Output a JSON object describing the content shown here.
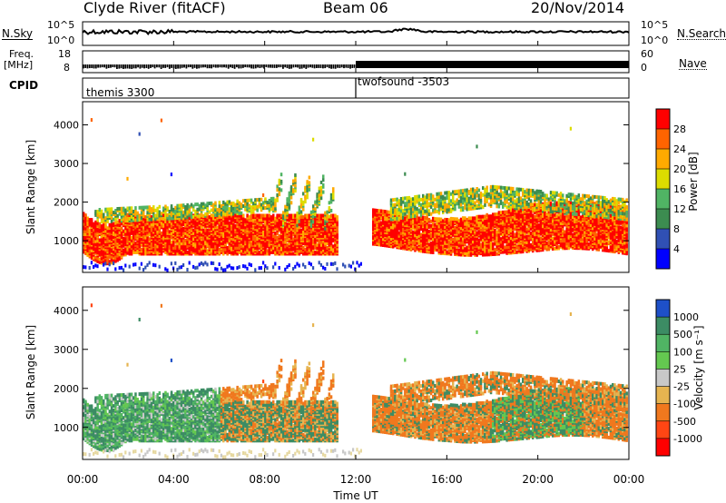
{
  "header": {
    "station": "Clyde River (fitACF)",
    "beam": "Beam 06",
    "date": "20/Nov/2014"
  },
  "panels": {
    "nsky_label": "N.Sky",
    "nsearch_label": "N.Search",
    "log_ticks_left": [
      "10^5",
      "10^0"
    ],
    "log_ticks_right": [
      "10^5",
      "10^0"
    ],
    "freq_label": "Freq.",
    "freq_unit": "[MHz]",
    "freq_ticks": [
      "18",
      "8"
    ],
    "nave_label": "Nave",
    "nave_ticks": [
      "60",
      "0"
    ],
    "cpid_label": "CPID",
    "cpid_segments": [
      {
        "name": "themis 3300",
        "start_hour": 0
      },
      {
        "name": "twofsound -3503",
        "start_hour": 12
      }
    ]
  },
  "chart_data": [
    {
      "type": "heatmap",
      "quantity": "Power",
      "ylabel": "Slant Range [km]",
      "ylim": [
        180,
        4600
      ],
      "yticks": [
        "1000",
        "2000",
        "3000",
        "4000"
      ],
      "xlim": [
        0,
        24
      ],
      "colorbar": {
        "label": "Power [dB]",
        "range": [
          0,
          32
        ],
        "ticks": [
          "4",
          "8",
          "12",
          "16",
          "20",
          "24",
          "28"
        ],
        "colors": [
          "#0000ff",
          "#3050b4",
          "#3c8c50",
          "#50b464",
          "#dcdc00",
          "#ffaa00",
          "#ff6400",
          "#ff0000"
        ]
      }
    },
    {
      "type": "heatmap",
      "quantity": "Velocity",
      "ylabel": "Slant Range [km]",
      "ylim": [
        180,
        4600
      ],
      "yticks": [
        "1000",
        "2000",
        "3000",
        "4000"
      ],
      "xlim": [
        0,
        24
      ],
      "colorbar": {
        "label": "Velocity [m s⁻¹]",
        "ticks": [
          "1000",
          "500",
          "100",
          "25",
          "-25",
          "-100",
          "-500",
          "-1000"
        ],
        "colors": [
          "#1e50c8",
          "#3c8c64",
          "#50b464",
          "#64c850",
          "#c8c8c8",
          "#e6b450",
          "#f0781e",
          "#ff4614",
          "#ff0000"
        ]
      }
    }
  ],
  "xaxis": {
    "label": "Time UT",
    "ticks": [
      "00:00",
      "04:00",
      "08:00",
      "12:00",
      "16:00",
      "20:00",
      "00:00"
    ]
  }
}
